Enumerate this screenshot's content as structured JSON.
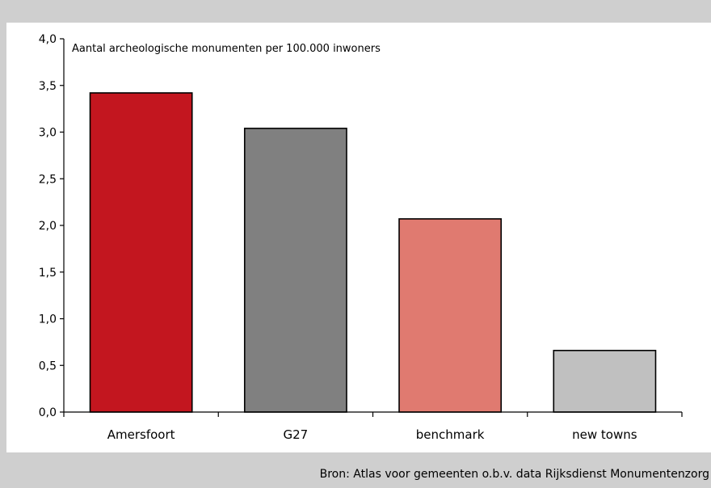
{
  "source_note": "Bron: Atlas voor gemeenten o.b.v. data Rijksdienst Monumentenzorg",
  "chart_data": {
    "type": "bar",
    "title": "Aantal archeologische monumenten per 100.000 inwoners",
    "categories": [
      "Amersfoort",
      "G27",
      "benchmark",
      "new towns"
    ],
    "values": [
      3.42,
      3.04,
      2.07,
      0.66
    ],
    "colors": [
      "#c3161f",
      "#808080",
      "#e07a70",
      "#c0c0c0"
    ],
    "ylim": [
      0,
      4
    ],
    "yticks": [
      "0,0",
      "0,5",
      "1,0",
      "1,5",
      "2,0",
      "2,5",
      "3,0",
      "3,5",
      "4,0"
    ],
    "xlabel": "",
    "ylabel": "",
    "grid": false
  }
}
